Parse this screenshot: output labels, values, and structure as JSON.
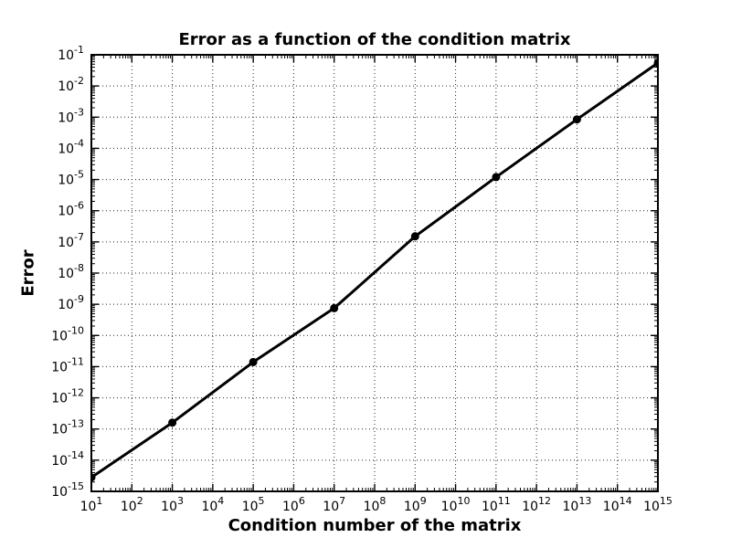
{
  "chart_data": {
    "type": "line",
    "title": "Error as a function of the condition matrix",
    "xlabel": "Condition number of the matrix",
    "ylabel": "Error",
    "x_scale": "log",
    "y_scale": "log",
    "xlim": [
      10.0,
      1000000000000000.0
    ],
    "ylim": [
      1e-15,
      0.1
    ],
    "x_tick_exponents": [
      1,
      2,
      3,
      4,
      5,
      6,
      7,
      8,
      9,
      10,
      11,
      12,
      13,
      14,
      15
    ],
    "y_tick_exponents": [
      -1,
      -2,
      -3,
      -4,
      -5,
      -6,
      -7,
      -8,
      -9,
      -10,
      -11,
      -12,
      -13,
      -14,
      -15
    ],
    "grid": "dotted-major",
    "legend_position": "none",
    "background_color": "#ffffff",
    "axis_color": "#000000",
    "series": [
      {
        "name": "error",
        "color": "#000000",
        "line_width": 3,
        "marker": "filled-circle",
        "marker_size": 9,
        "points": [
          {
            "x": 10.0,
            "y": 2.8e-15
          },
          {
            "x": 1000.0,
            "y": 1.6e-13
          },
          {
            "x": 100000.0,
            "y": 1.4e-11
          },
          {
            "x": 10000000.0,
            "y": 7.5e-10
          },
          {
            "x": 1000000000.0,
            "y": 1.5e-07
          },
          {
            "x": 100000000000.0,
            "y": 1.2e-05
          },
          {
            "x": 10000000000000.0,
            "y": 0.00085
          },
          {
            "x": 1000000000000000.0,
            "y": 0.055
          }
        ]
      }
    ]
  }
}
